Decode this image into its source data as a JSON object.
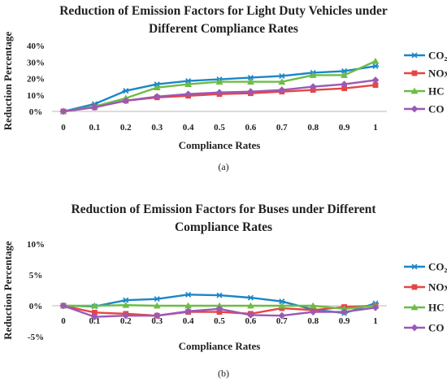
{
  "chart_data": [
    {
      "type": "line",
      "title_lines": [
        "Reduction of Emission Factors for Light Duty Vehicles under",
        "Different Compliance Rates"
      ],
      "xlabel": "Compliance Rates",
      "ylabel": "Reduction Percentage",
      "caption": "(a)",
      "x": [
        "0",
        "0.1",
        "0.2",
        "0.3",
        "0.4",
        "0.5",
        "0.6",
        "0.7",
        "0.8",
        "0.9",
        "1"
      ],
      "yticks": [
        "0%",
        "10%",
        "20%",
        "30%",
        "40%"
      ],
      "ylim": [
        0,
        40
      ],
      "legend_position": "right",
      "series": [
        {
          "name": "CO₂",
          "color": "#1a86c8",
          "marker": "asterisk",
          "values": [
            0,
            4.5,
            12.5,
            16.5,
            18.5,
            19.5,
            20.5,
            21.5,
            23.5,
            24.5,
            27.5
          ]
        },
        {
          "name": "NOx",
          "color": "#e64545",
          "marker": "square",
          "values": [
            0,
            2.5,
            6.5,
            8.5,
            9.5,
            10.5,
            11,
            12,
            13,
            14,
            16
          ]
        },
        {
          "name": "HC",
          "color": "#6cbd45",
          "marker": "triangle",
          "values": [
            0,
            3,
            8,
            14.5,
            16.5,
            18,
            18,
            18,
            22,
            22,
            30.5
          ]
        },
        {
          "name": "CO",
          "color": "#9b59b6",
          "marker": "diamond",
          "values": [
            0,
            2.5,
            6.5,
            9,
            10.5,
            11.5,
            12,
            13,
            15,
            16.5,
            19
          ]
        }
      ]
    },
    {
      "type": "line",
      "title_lines": [
        "Reduction of Emission Factors for Buses under Different",
        "Compliance Rates"
      ],
      "xlabel": "Compliance Rates",
      "ylabel": "Reduction Percentage",
      "caption": "(b)",
      "x": [
        "0",
        "0.1",
        "0.2",
        "0.3",
        "0.4",
        "0.5",
        "0.6",
        "0.7",
        "0.8",
        "0.9",
        "1"
      ],
      "yticks": [
        "-5%",
        "0%",
        "5%",
        "10%"
      ],
      "ylim": [
        -5,
        10
      ],
      "legend_position": "right",
      "series": [
        {
          "name": "CO₂",
          "color": "#1a86c8",
          "marker": "asterisk",
          "values": [
            0,
            -0.1,
            0.9,
            1.1,
            1.8,
            1.7,
            1.3,
            0.7,
            -0.6,
            -1.2,
            0.4
          ]
        },
        {
          "name": "NOx",
          "color": "#e64545",
          "marker": "square",
          "values": [
            0,
            -1.1,
            -1.3,
            -1.6,
            -1.0,
            -1.0,
            -1.3,
            -0.4,
            -0.7,
            -0.2,
            0
          ]
        },
        {
          "name": "HC",
          "color": "#6cbd45",
          "marker": "triangle",
          "values": [
            0,
            0,
            0.1,
            0,
            0,
            0,
            0,
            0,
            0,
            -0.5,
            0
          ]
        },
        {
          "name": "CO",
          "color": "#9b59b6",
          "marker": "diamond",
          "values": [
            0,
            -1.8,
            -1.6,
            -1.6,
            -0.9,
            -0.5,
            -1.5,
            -1.6,
            -1.0,
            -1.0,
            -0.3
          ]
        }
      ]
    }
  ]
}
